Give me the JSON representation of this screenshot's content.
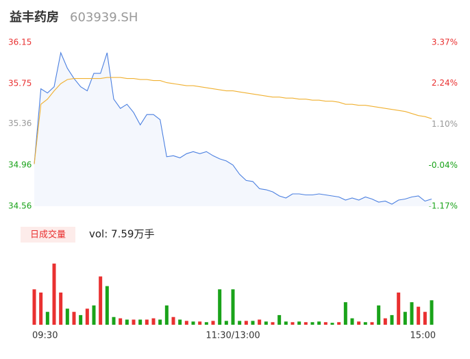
{
  "chart_data": {
    "type": "line",
    "title": "益丰药房",
    "subtitle": "603939.SH",
    "xlim": [
      0,
      240
    ],
    "xticks": [
      {
        "value": 0,
        "label": "09:30"
      },
      {
        "value": 120,
        "label": "11:30/13:00"
      },
      {
        "value": 240,
        "label": "15:00"
      }
    ],
    "x": [
      0,
      4,
      8,
      12,
      16,
      20,
      24,
      28,
      32,
      36,
      40,
      44,
      48,
      52,
      56,
      60,
      64,
      68,
      72,
      76,
      80,
      84,
      88,
      92,
      96,
      100,
      104,
      108,
      112,
      116,
      120,
      124,
      128,
      132,
      136,
      140,
      144,
      148,
      152,
      156,
      160,
      164,
      168,
      172,
      176,
      180,
      184,
      188,
      192,
      196,
      200,
      204,
      208,
      212,
      216,
      220,
      224,
      228,
      232,
      236,
      240
    ],
    "ylim": [
      34.56,
      36.15
    ],
    "yticks": [
      34.56,
      34.96,
      35.36,
      35.75,
      36.15
    ],
    "y2lim": [
      -1.17,
      3.37
    ],
    "y2ticks": [
      {
        "value": -1.17,
        "label": "-1.17%"
      },
      {
        "value": -0.04,
        "label": "-0.04%"
      },
      {
        "value": 1.1,
        "label": "1.10%"
      },
      {
        "value": 2.24,
        "label": "2.24%"
      },
      {
        "value": 3.37,
        "label": "3.37%"
      }
    ],
    "tick_colors": [
      "#1aa31a",
      "#1aa31a",
      "#999999",
      "#e93030",
      "#e93030"
    ],
    "series": [
      {
        "name": "price",
        "color": "#4a7fe0",
        "values": [
          34.97,
          35.7,
          35.66,
          35.72,
          36.05,
          35.9,
          35.8,
          35.72,
          35.68,
          35.85,
          35.85,
          36.05,
          35.6,
          35.51,
          35.55,
          35.47,
          35.35,
          35.45,
          35.45,
          35.4,
          35.04,
          35.05,
          35.03,
          35.07,
          35.09,
          35.07,
          35.09,
          35.05,
          35.02,
          35.0,
          34.96,
          34.87,
          34.81,
          34.8,
          34.73,
          34.72,
          34.7,
          34.66,
          34.64,
          34.68,
          34.68,
          34.67,
          34.67,
          34.68,
          34.67,
          34.66,
          34.65,
          34.62,
          34.64,
          34.62,
          34.65,
          34.63,
          34.6,
          34.61,
          34.58,
          34.62,
          34.63,
          34.65,
          34.66,
          34.61,
          34.63
        ]
      },
      {
        "name": "average",
        "color": "#f0b030",
        "values": [
          34.97,
          35.55,
          35.6,
          35.68,
          35.75,
          35.79,
          35.8,
          35.8,
          35.8,
          35.8,
          35.8,
          35.81,
          35.81,
          35.81,
          35.8,
          35.8,
          35.79,
          35.79,
          35.78,
          35.78,
          35.76,
          35.75,
          35.74,
          35.73,
          35.73,
          35.72,
          35.71,
          35.7,
          35.69,
          35.68,
          35.68,
          35.67,
          35.66,
          35.65,
          35.64,
          35.63,
          35.62,
          35.62,
          35.61,
          35.61,
          35.6,
          35.6,
          35.59,
          35.59,
          35.58,
          35.58,
          35.57,
          35.55,
          35.55,
          35.54,
          35.54,
          35.53,
          35.52,
          35.51,
          35.5,
          35.49,
          35.48,
          35.46,
          35.44,
          35.43,
          35.41
        ]
      }
    ],
    "volume": {
      "label": "日成交量",
      "summary": "vol: 7.59万手",
      "ylim": [
        0,
        100
      ],
      "values": [
        55,
        50,
        20,
        95,
        50,
        25,
        20,
        15,
        25,
        30,
        75,
        60,
        12,
        10,
        8,
        8,
        8,
        8,
        10,
        8,
        30,
        12,
        8,
        6,
        5,
        5,
        4,
        6,
        55,
        6,
        55,
        6,
        6,
        6,
        8,
        5,
        4,
        15,
        5,
        4,
        5,
        4,
        4,
        5,
        4,
        3,
        4,
        35,
        10,
        5,
        4,
        4,
        30,
        10,
        15,
        50,
        20,
        35,
        28,
        20,
        38
      ],
      "colors": [
        "#e93030",
        "#e93030",
        "#1aa31a",
        "#e93030",
        "#e93030",
        "#1aa31a",
        "#e93030",
        "#1aa31a",
        "#e93030",
        "#1aa31a",
        "#e93030",
        "#1aa31a",
        "#1aa31a",
        "#e93030",
        "#1aa31a",
        "#e93030",
        "#1aa31a",
        "#e93030",
        "#e93030",
        "#1aa31a",
        "#1aa31a",
        "#e93030",
        "#1aa31a",
        "#e93030",
        "#1aa31a",
        "#e93030",
        "#1aa31a",
        "#e93030",
        "#1aa31a",
        "#1aa31a",
        "#1aa31a",
        "#1aa31a",
        "#e93030",
        "#1aa31a",
        "#e93030",
        "#1aa31a",
        "#e93030",
        "#1aa31a",
        "#1aa31a",
        "#e93030",
        "#1aa31a",
        "#e93030",
        "#1aa31a",
        "#1aa31a",
        "#e93030",
        "#1aa31a",
        "#e93030",
        "#1aa31a",
        "#1aa31a",
        "#e93030",
        "#1aa31a",
        "#e93030",
        "#1aa31a",
        "#e93030",
        "#1aa31a",
        "#e93030",
        "#1aa31a",
        "#1aa31a",
        "#e93030",
        "#e93030",
        "#1aa31a"
      ]
    }
  }
}
